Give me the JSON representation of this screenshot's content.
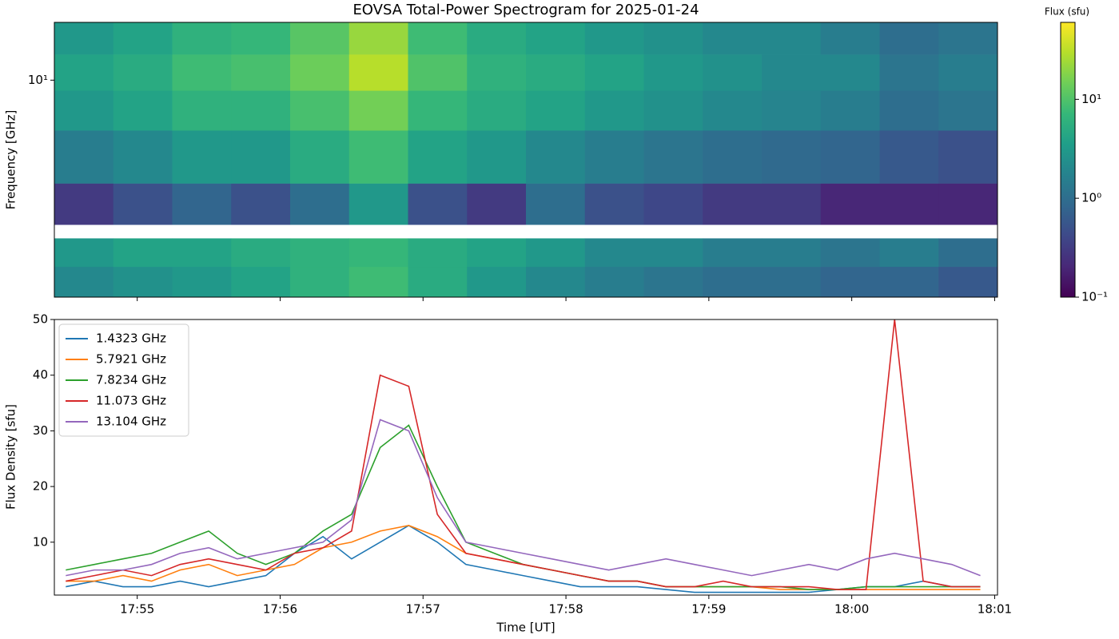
{
  "chart_data": [
    {
      "type": "heatmap",
      "title": "EOVSA Total-Power Spectrogram for 2025-01-24",
      "y_label": "Frequency [GHz]",
      "colorbar_label": "Flux (sfu)",
      "log_y": true,
      "log_color": true,
      "colormap": "viridis",
      "xlim": [
        1074.42,
        1081.02
      ],
      "xticks": [
        1075,
        1076,
        1077,
        1078,
        1079,
        1080,
        1081
      ],
      "ylim": [
        1.1,
        18
      ],
      "yticks": [
        {
          "value": 10,
          "label": "10¹"
        }
      ],
      "clim": [
        0.1,
        60
      ],
      "cticks": [
        {
          "value": 0.1,
          "label": "10⁻¹"
        },
        {
          "value": 1,
          "label": "10⁰"
        },
        {
          "value": 10,
          "label": "10¹"
        }
      ],
      "xbins": [
        1074.42,
        1074.8325,
        1075.245,
        1075.6575,
        1076.07,
        1076.4825,
        1076.895,
        1077.3075,
        1077.72,
        1078.1325,
        1078.545,
        1078.9575,
        1079.37,
        1079.7825,
        1080.195,
        1080.6075,
        1081.02
      ],
      "ybins": [
        1.1,
        1.5,
        2.0,
        2.3,
        3.5,
        6,
        9,
        13,
        18
      ],
      "z": [
        [
          2,
          2.5,
          3,
          4,
          6,
          8,
          5,
          3,
          2,
          1.5,
          1.2,
          1,
          1,
          0.8,
          0.8,
          0.6
        ],
        [
          3,
          4,
          4,
          5,
          6,
          7,
          5,
          4,
          3,
          2,
          2,
          1.5,
          1.5,
          1.2,
          1.5,
          1
        ],
        [
          null,
          null,
          null,
          null,
          null,
          null,
          null,
          null,
          null,
          null,
          null,
          null,
          null,
          null,
          null,
          null
        ],
        [
          0.3,
          0.5,
          0.8,
          0.5,
          1,
          3,
          0.5,
          0.3,
          1,
          0.5,
          0.4,
          0.3,
          0.3,
          0.2,
          0.2,
          0.2
        ],
        [
          1.5,
          2,
          3,
          3,
          5,
          8,
          4,
          3,
          2,
          1.5,
          1.2,
          1,
          0.9,
          0.8,
          0.6,
          0.5
        ],
        [
          3,
          4,
          6,
          6,
          9,
          15,
          7,
          5,
          4,
          3,
          2.5,
          2,
          1.8,
          1.5,
          1,
          1.2
        ],
        [
          4,
          5,
          8,
          9,
          14,
          30,
          10,
          6,
          5,
          4,
          3,
          2.5,
          2,
          2,
          1.2,
          1.5
        ],
        [
          3,
          4,
          6,
          7,
          11,
          22,
          8,
          5,
          4,
          3,
          2.5,
          2,
          2,
          1.5,
          1,
          1.2
        ]
      ]
    },
    {
      "type": "line",
      "x_label": "Time [UT]",
      "y_label": "Flux Density [sfu]",
      "legend": "upper left",
      "xlim": [
        1074.42,
        1081.02
      ],
      "xticks": [
        {
          "value": 1075,
          "label": "17:55"
        },
        {
          "value": 1076,
          "label": "17:56"
        },
        {
          "value": 1077,
          "label": "17:57"
        },
        {
          "value": 1078,
          "label": "17:58"
        },
        {
          "value": 1079,
          "label": "17:59"
        },
        {
          "value": 1080,
          "label": "18:00"
        },
        {
          "value": 1081,
          "label": "18:01"
        }
      ],
      "ylim": [
        0.5,
        50
      ],
      "yticks": [
        10,
        20,
        30,
        40,
        50
      ],
      "x": [
        1074.5,
        1074.7,
        1074.9,
        1075.1,
        1075.3,
        1075.5,
        1075.7,
        1075.9,
        1076.1,
        1076.3,
        1076.5,
        1076.7,
        1076.9,
        1077.1,
        1077.3,
        1077.5,
        1077.7,
        1077.9,
        1078.1,
        1078.3,
        1078.5,
        1078.7,
        1078.9,
        1079.1,
        1079.3,
        1079.5,
        1079.7,
        1079.9,
        1080.1,
        1080.3,
        1080.5,
        1080.7,
        1080.9
      ],
      "series": [
        {
          "name": "1.4323 GHz",
          "color": "#1f77b4",
          "values": [
            2,
            3,
            2,
            2,
            3,
            2,
            3,
            4,
            8,
            11,
            7,
            10,
            13,
            10,
            6,
            5,
            4,
            3,
            2,
            2,
            2,
            1.5,
            1,
            1,
            1,
            1,
            1,
            1.5,
            2,
            2,
            3,
            2,
            2
          ]
        },
        {
          "name": "5.7921 GHz",
          "color": "#ff7f0e",
          "values": [
            3,
            3,
            4,
            3,
            5,
            6,
            4,
            5,
            6,
            9,
            10,
            12,
            13,
            11,
            8,
            7,
            6,
            5,
            4,
            3,
            3,
            2,
            2,
            2,
            2,
            1.5,
            1.5,
            1.5,
            1.5,
            1.5,
            1.5,
            1.5,
            1.5
          ]
        },
        {
          "name": "7.8234 GHz",
          "color": "#2ca02c",
          "values": [
            5,
            6,
            7,
            8,
            10,
            12,
            8,
            6,
            8,
            12,
            15,
            27,
            31,
            20,
            10,
            8,
            6,
            5,
            4,
            3,
            3,
            2,
            2,
            2,
            2,
            2,
            1.5,
            1.5,
            2,
            2,
            2,
            2,
            2
          ]
        },
        {
          "name": "11.073 GHz",
          "color": "#d62728",
          "values": [
            3,
            4,
            5,
            4,
            6,
            7,
            6,
            5,
            8,
            9,
            12,
            40,
            38,
            15,
            8,
            7,
            6,
            5,
            4,
            3,
            3,
            2,
            2,
            3,
            2,
            2,
            2,
            1.5,
            1.5,
            50,
            3,
            2,
            2
          ]
        },
        {
          "name": "13.104 GHz",
          "color": "#9467bd",
          "values": [
            4,
            5,
            5,
            6,
            8,
            9,
            7,
            8,
            9,
            10,
            14,
            32,
            30,
            18,
            10,
            9,
            8,
            7,
            6,
            5,
            6,
            7,
            6,
            5,
            4,
            5,
            6,
            5,
            7,
            8,
            7,
            6,
            4
          ]
        }
      ]
    }
  ]
}
